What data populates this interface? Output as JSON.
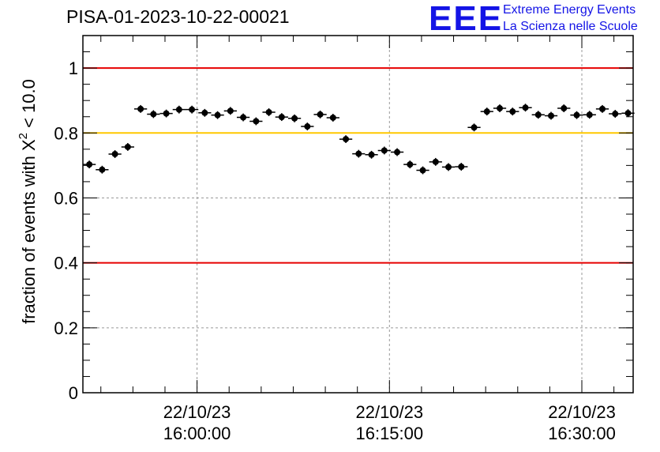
{
  "header": {
    "title": "PISA-01-2023-10-22-00021",
    "logo_mark": "EEE",
    "logo_line1": "Extreme Energy Events",
    "logo_line2": "La Scienza nelle Scuole"
  },
  "colors": {
    "red_line": "#e60000",
    "yellow_line": "#ffc800",
    "points": "#000000",
    "logo": "#1414e6"
  },
  "chart_data": {
    "type": "scatter",
    "title": "PISA-01-2023-10-22-00021",
    "ylabel_prefix": "fraction of events with X",
    "ylabel_sup": "2",
    "ylabel_suffix": " < 10.0",
    "xlabel": "",
    "ylim": [
      0,
      1.1
    ],
    "xlim_minutes_since_1600": [
      -8.9,
      34.0
    ],
    "grid": true,
    "reference_lines": [
      {
        "y": 1.0,
        "color": "red"
      },
      {
        "y": 0.8,
        "color": "yellow"
      },
      {
        "y": 0.4,
        "color": "red"
      }
    ],
    "y_ticks": [
      {
        "value": 0,
        "label": "0"
      },
      {
        "value": 0.2,
        "label": "0.2"
      },
      {
        "value": 0.4,
        "label": "0.4"
      },
      {
        "value": 0.6,
        "label": "0.6"
      },
      {
        "value": 0.8,
        "label": "0.8"
      },
      {
        "value": 1,
        "label": "1"
      }
    ],
    "x_ticks": [
      {
        "value": 0,
        "date": "22/10/23",
        "time": "16:00:00"
      },
      {
        "value": 15,
        "date": "22/10/23",
        "time": "16:15:00"
      },
      {
        "value": 30,
        "date": "22/10/23",
        "time": "16:30:00"
      }
    ],
    "bin_width_minutes": 1,
    "points": [
      {
        "x": -8.4,
        "y": 0.703
      },
      {
        "x": -7.4,
        "y": 0.687
      },
      {
        "x": -6.4,
        "y": 0.735
      },
      {
        "x": -5.4,
        "y": 0.757
      },
      {
        "x": -4.4,
        "y": 0.874
      },
      {
        "x": -3.4,
        "y": 0.858
      },
      {
        "x": -2.4,
        "y": 0.86
      },
      {
        "x": -1.4,
        "y": 0.872
      },
      {
        "x": -0.4,
        "y": 0.872
      },
      {
        "x": 0.6,
        "y": 0.862
      },
      {
        "x": 1.6,
        "y": 0.855
      },
      {
        "x": 2.6,
        "y": 0.868
      },
      {
        "x": 3.6,
        "y": 0.848
      },
      {
        "x": 4.6,
        "y": 0.836
      },
      {
        "x": 5.6,
        "y": 0.864
      },
      {
        "x": 6.6,
        "y": 0.849
      },
      {
        "x": 7.6,
        "y": 0.845
      },
      {
        "x": 8.6,
        "y": 0.82
      },
      {
        "x": 9.6,
        "y": 0.857
      },
      {
        "x": 10.6,
        "y": 0.847
      },
      {
        "x": 11.6,
        "y": 0.781
      },
      {
        "x": 12.6,
        "y": 0.736
      },
      {
        "x": 13.6,
        "y": 0.733
      },
      {
        "x": 14.6,
        "y": 0.746
      },
      {
        "x": 15.6,
        "y": 0.741
      },
      {
        "x": 16.6,
        "y": 0.703
      },
      {
        "x": 17.6,
        "y": 0.685
      },
      {
        "x": 18.6,
        "y": 0.711
      },
      {
        "x": 19.6,
        "y": 0.695
      },
      {
        "x": 20.6,
        "y": 0.696
      },
      {
        "x": 21.6,
        "y": 0.817
      },
      {
        "x": 22.6,
        "y": 0.866
      },
      {
        "x": 23.6,
        "y": 0.876
      },
      {
        "x": 24.6,
        "y": 0.866
      },
      {
        "x": 25.6,
        "y": 0.878
      },
      {
        "x": 26.6,
        "y": 0.856
      },
      {
        "x": 27.6,
        "y": 0.853
      },
      {
        "x": 28.6,
        "y": 0.876
      },
      {
        "x": 29.6,
        "y": 0.855
      },
      {
        "x": 30.6,
        "y": 0.856
      },
      {
        "x": 31.6,
        "y": 0.874
      },
      {
        "x": 32.6,
        "y": 0.859
      },
      {
        "x": 33.6,
        "y": 0.861
      }
    ],
    "error_half_height": 0.012
  }
}
